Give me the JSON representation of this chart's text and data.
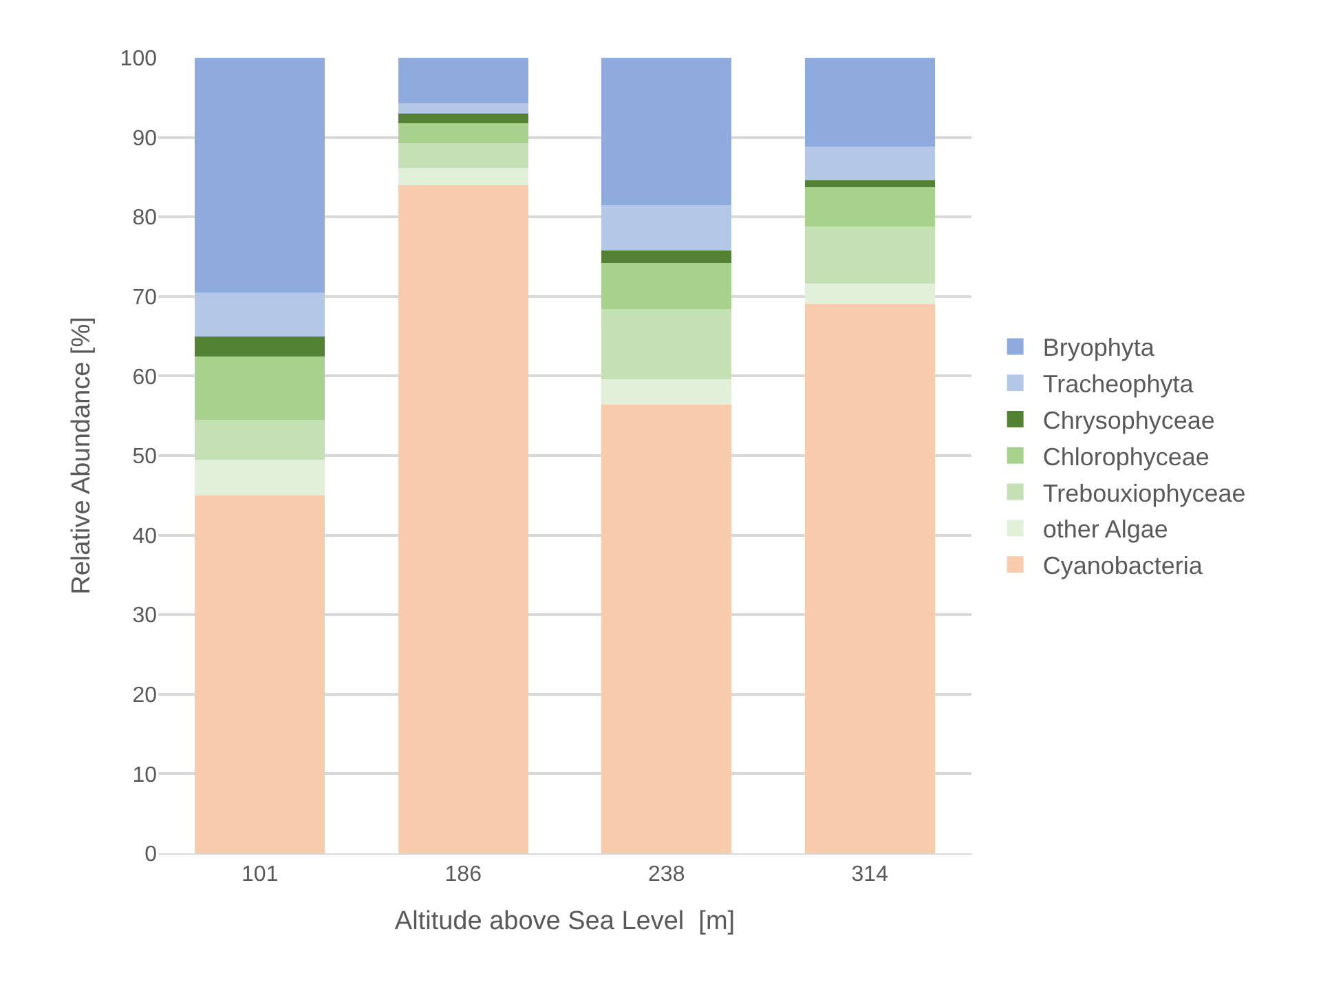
{
  "chart_data": {
    "type": "bar",
    "stacked": true,
    "xlabel": "Altitude above Sea Level  [m]",
    "ylabel": "Relative Abundance [%]",
    "categories": [
      "101",
      "186",
      "238",
      "314"
    ],
    "series": [
      {
        "name": "Cyanobacteria",
        "color": "#f8cbad",
        "values": [
          45,
          84,
          56.4,
          69
        ]
      },
      {
        "name": "other Algae",
        "color": "#e2f0d9",
        "values": [
          4.5,
          2.2,
          3.2,
          2.6
        ]
      },
      {
        "name": "Trebouxiophyceae",
        "color": "#c5e0b4",
        "values": [
          5,
          3.1,
          8.8,
          7.2
        ]
      },
      {
        "name": "Chlorophyceae",
        "color": "#a9d18e",
        "values": [
          8,
          2.5,
          5.8,
          4.9
        ]
      },
      {
        "name": "Chrysophyceae",
        "color": "#548235",
        "values": [
          2.5,
          1.2,
          1.6,
          0.9
        ]
      },
      {
        "name": "Tracheophyta",
        "color": "#b4c7e7",
        "values": [
          5.5,
          1.3,
          5.7,
          4.2
        ]
      },
      {
        "name": "Bryophyta",
        "color": "#8faadc",
        "values": [
          29.5,
          5.7,
          18.5,
          11.2
        ]
      }
    ],
    "ylim": [
      0,
      100
    ],
    "yticks": [
      0,
      10,
      20,
      30,
      40,
      50,
      60,
      70,
      80,
      90,
      100
    ],
    "grid": "y",
    "legend": "right"
  }
}
